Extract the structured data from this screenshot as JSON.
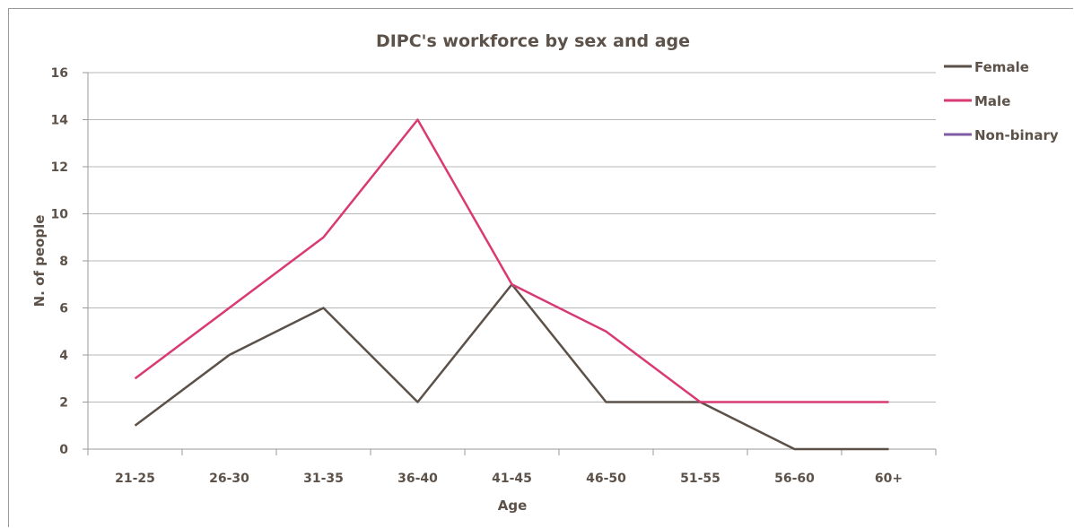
{
  "chart_data": {
    "type": "line",
    "title": "DIPC's workforce by sex and age",
    "xlabel": "Age",
    "ylabel": "N. of people",
    "categories": [
      "21-25",
      "26-30",
      "31-35",
      "36-40",
      "41-45",
      "46-50",
      "51-55",
      "56-60",
      "60+"
    ],
    "yticks": [
      "0",
      "2",
      "4",
      "6",
      "8",
      "10",
      "12",
      "14",
      "16"
    ],
    "ylim": [
      0,
      16
    ],
    "grid": true,
    "legend_position": "right",
    "series": [
      {
        "name": "Female",
        "color": "#5b5149",
        "values": [
          1,
          4,
          6,
          2,
          7,
          2,
          2,
          0,
          0
        ]
      },
      {
        "name": "Male",
        "color": "#d93a73",
        "values": [
          3,
          6,
          9,
          14,
          7,
          5,
          2,
          2,
          2
        ]
      },
      {
        "name": "Non-binary",
        "color": "#7f5ba6",
        "values": [
          0,
          0,
          0,
          0,
          0,
          0,
          0,
          0,
          0
        ]
      }
    ]
  }
}
